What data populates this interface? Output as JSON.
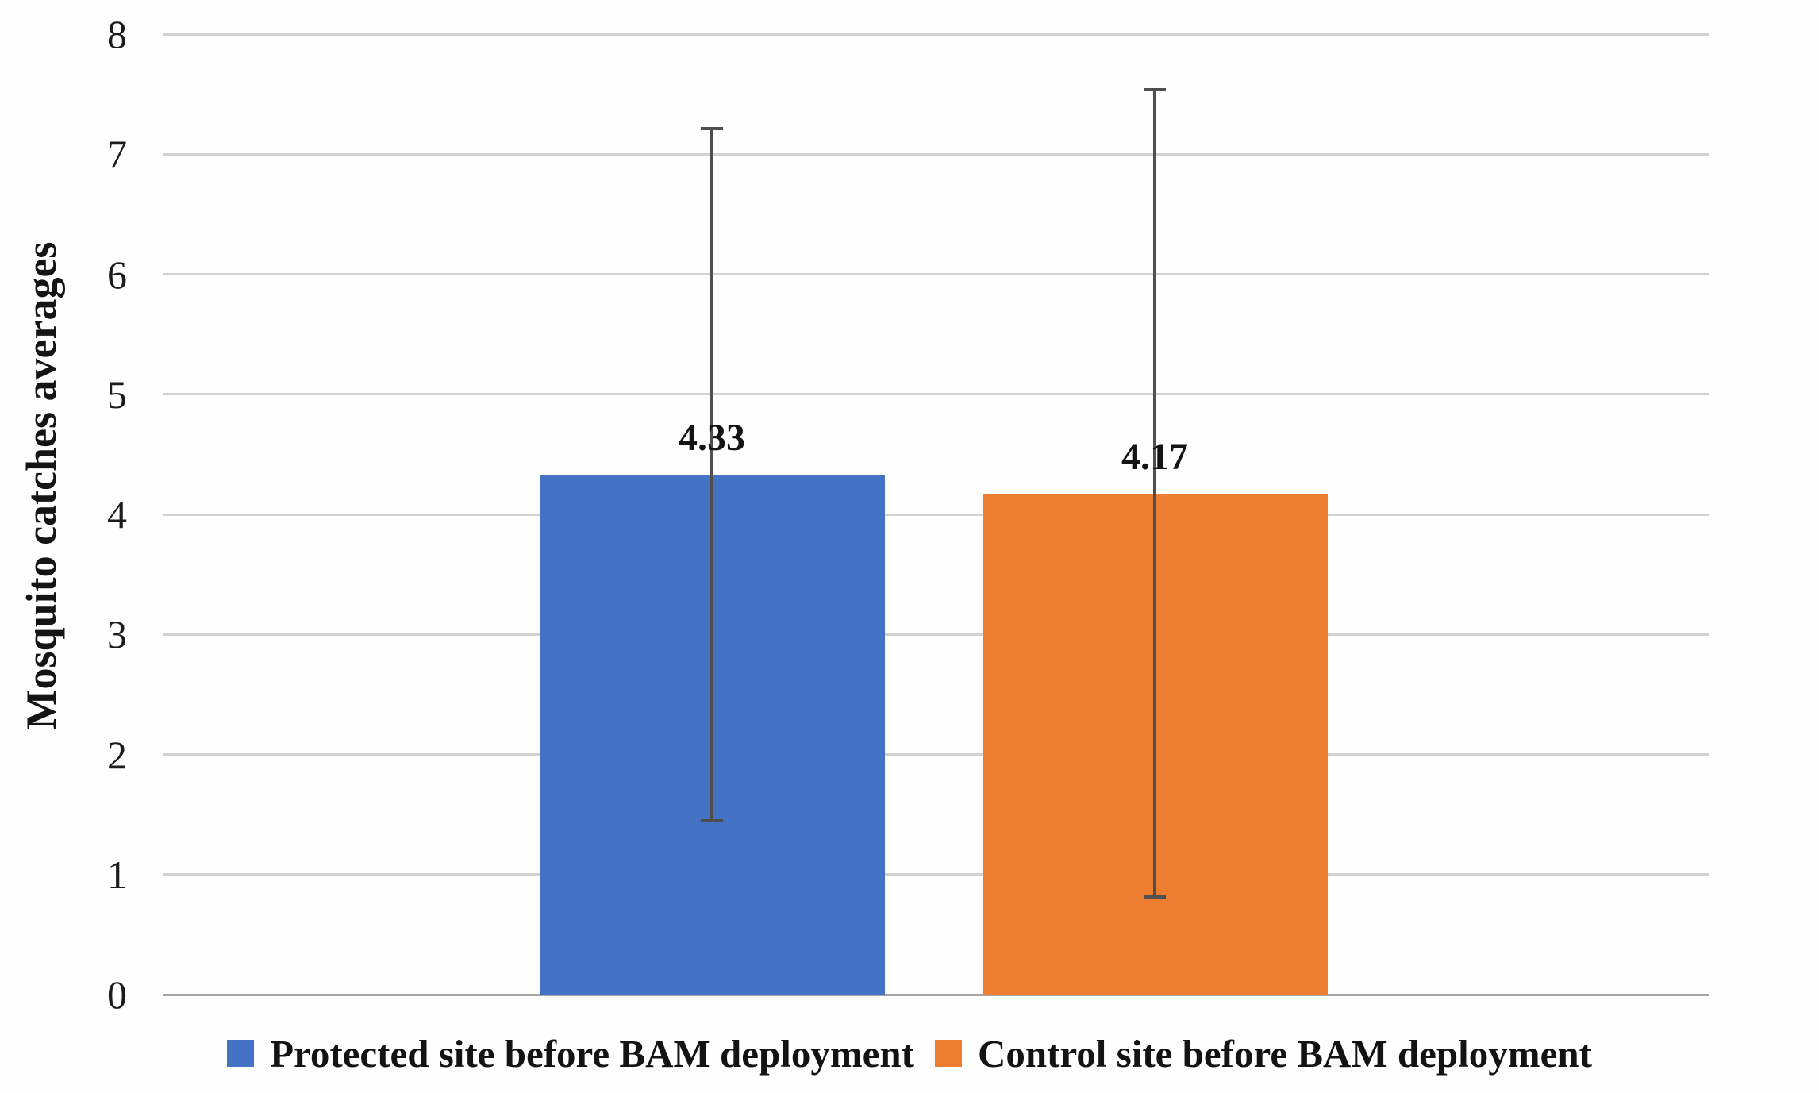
{
  "chart_data": {
    "type": "bar",
    "title": "",
    "xlabel": "",
    "ylabel": "Mosquito catches averages",
    "ylim": [
      0,
      8
    ],
    "yticks": [
      0,
      1,
      2,
      3,
      4,
      5,
      6,
      7,
      8
    ],
    "grid": true,
    "legend_position": "bottom",
    "series": [
      {
        "name": "Protected site before BAM deployment",
        "value": 4.33,
        "data_label": "4.33",
        "color": "#4472C4",
        "error_low": 1.45,
        "error_high": 7.21
      },
      {
        "name": "Control site before BAM deployment",
        "value": 4.17,
        "data_label": "4.17",
        "color": "#ED7D31",
        "error_low": 0.81,
        "error_high": 7.54
      }
    ]
  },
  "colors": {
    "gridline": "#D2D2D2",
    "baseline": "#A6A6A6",
    "error_bar": "#4F4F4F",
    "text": "#141414",
    "background": "#FEFEFE"
  }
}
